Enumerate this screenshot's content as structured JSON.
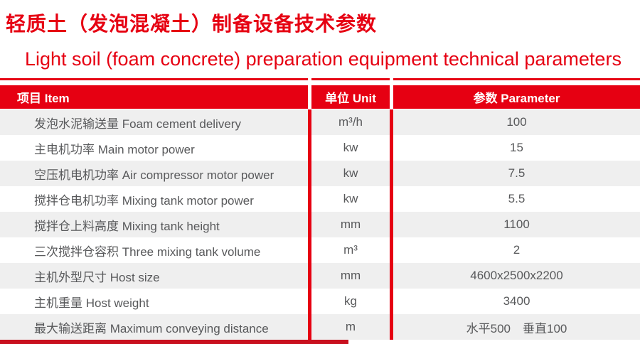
{
  "page": {
    "title_zh": "轻质土（发泡混凝土）制备设备技术参数",
    "title_en": "Light soil (foam concrete) preparation equipment technical parameters"
  },
  "table": {
    "headers": [
      {
        "label": "项目 Item"
      },
      {
        "label": "单位 Unit"
      },
      {
        "label": "参数 Parameter"
      }
    ],
    "rows": [
      {
        "item": "发泡水泥输送量 Foam cement delivery",
        "unit": "m³/h",
        "parameter": "100"
      },
      {
        "item": "主电机功率 Main motor power",
        "unit": "kw",
        "parameter": "15"
      },
      {
        "item": "空压机电机功率 Air compressor motor power",
        "unit": "kw",
        "parameter": "7.5"
      },
      {
        "item": "搅拌仓电机功率 Mixing tank motor power",
        "unit": "kw",
        "parameter": "5.5"
      },
      {
        "item": "搅拌仓上料高度 Mixing tank height",
        "unit": "mm",
        "parameter": "1100"
      },
      {
        "item": "三次搅拌仓容积 Three mixing tank volume",
        "unit": "m³",
        "parameter": "2"
      },
      {
        "item": "主机外型尺寸 Host size",
        "unit": "mm",
        "parameter": "4600x2500x2200"
      },
      {
        "item": "主机重量 Host weight",
        "unit": "kg",
        "parameter": "3400"
      },
      {
        "item": "最大输送距离 Maximum conveying distance",
        "unit": "m",
        "parameter": "水平500　垂直100"
      }
    ]
  },
  "colors": {
    "accent_red": "#e60012",
    "row_alt_gray": "#efefef",
    "text_gray": "#58595b",
    "bottom_bar_red": "#c8101e"
  }
}
